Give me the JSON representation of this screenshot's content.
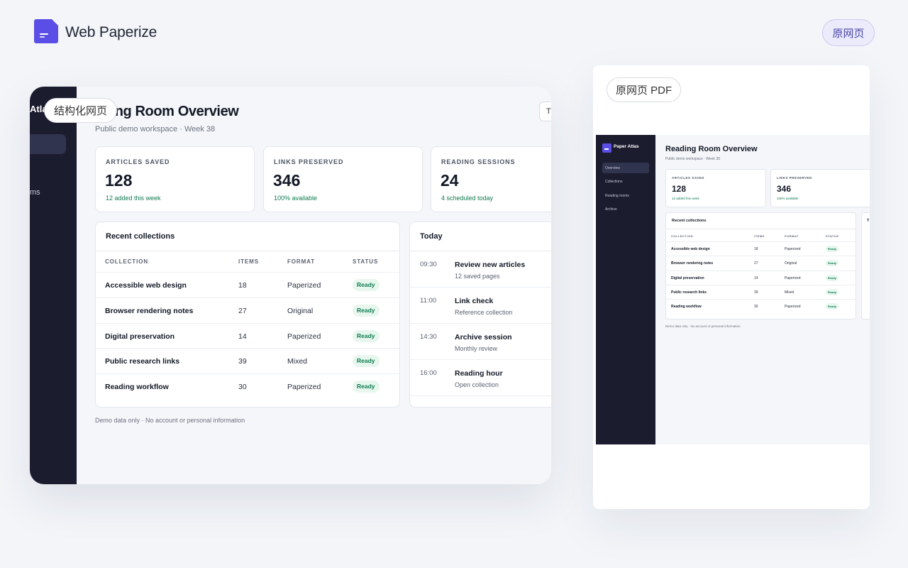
{
  "app": {
    "title": "Web Paperize",
    "source_button": "原网页"
  },
  "structured": {
    "badge": "结构化网页",
    "sidebar": {
      "brand": "Atla",
      "items": [
        "ms"
      ]
    },
    "page_title": "ading Room Overview",
    "subtitle": "Public demo workspace · Week 38",
    "top_right_button": "T",
    "stats": [
      {
        "label": "ARTICLES SAVED",
        "value": "128",
        "note": "12 added this week"
      },
      {
        "label": "LINKS PRESERVED",
        "value": "346",
        "note": "100% available"
      },
      {
        "label": "READING SESSIONS",
        "value": "24",
        "note": "4 scheduled today"
      }
    ],
    "collections": {
      "title": "Recent collections",
      "columns": [
        "COLLECTION",
        "ITEMS",
        "FORMAT",
        "STATUS"
      ],
      "rows": [
        {
          "name": "Accessible web design",
          "items": "18",
          "format": "Paperized",
          "status": "Ready"
        },
        {
          "name": "Browser rendering notes",
          "items": "27",
          "format": "Original",
          "status": "Ready"
        },
        {
          "name": "Digital preservation",
          "items": "14",
          "format": "Paperized",
          "status": "Ready"
        },
        {
          "name": "Public research links",
          "items": "39",
          "format": "Mixed",
          "status": "Ready"
        },
        {
          "name": "Reading workflow",
          "items": "30",
          "format": "Paperized",
          "status": "Ready"
        }
      ]
    },
    "today": {
      "title": "Today",
      "items": [
        {
          "time": "09:30",
          "title": "Review new articles",
          "detail": "12 saved pages"
        },
        {
          "time": "11:00",
          "title": "Link check",
          "detail": "Reference collection"
        },
        {
          "time": "14:30",
          "title": "Archive session",
          "detail": "Monthly review"
        },
        {
          "time": "16:00",
          "title": "Reading hour",
          "detail": "Open collection"
        }
      ]
    },
    "footer": "Demo data only · No account or personal information"
  },
  "pdf": {
    "badge": "原网页 PDF",
    "brand": "Paper Atlas",
    "nav": [
      "Overview",
      "Collections",
      "Reading rooms",
      "Archive"
    ],
    "page_title": "Reading Room Overview",
    "subtitle": "Public demo workspace · Week 38",
    "stats": [
      {
        "label": "ARTICLES SAVED",
        "value": "128",
        "note": "12 added this week"
      },
      {
        "label": "LINKS PRESERVED",
        "value": "346",
        "note": "100% available"
      }
    ],
    "collections_title": "Recent collections",
    "columns": [
      "COLLECTION",
      "ITEMS",
      "FORMAT",
      "STATUS"
    ],
    "rows": [
      {
        "name": "Accessible web design",
        "items": "18",
        "format": "Paperized",
        "status": "Ready"
      },
      {
        "name": "Browser rendering notes",
        "items": "27",
        "format": "Original",
        "status": "Ready"
      },
      {
        "name": "Digital preservation",
        "items": "14",
        "format": "Paperized",
        "status": "Ready"
      },
      {
        "name": "Public research links",
        "items": "39",
        "format": "Mixed",
        "status": "Ready"
      },
      {
        "name": "Reading workflow",
        "items": "30",
        "format": "Paperized",
        "status": "Ready"
      }
    ],
    "side_panel_title": "T",
    "footer": "Demo data only · No account or personal information"
  }
}
